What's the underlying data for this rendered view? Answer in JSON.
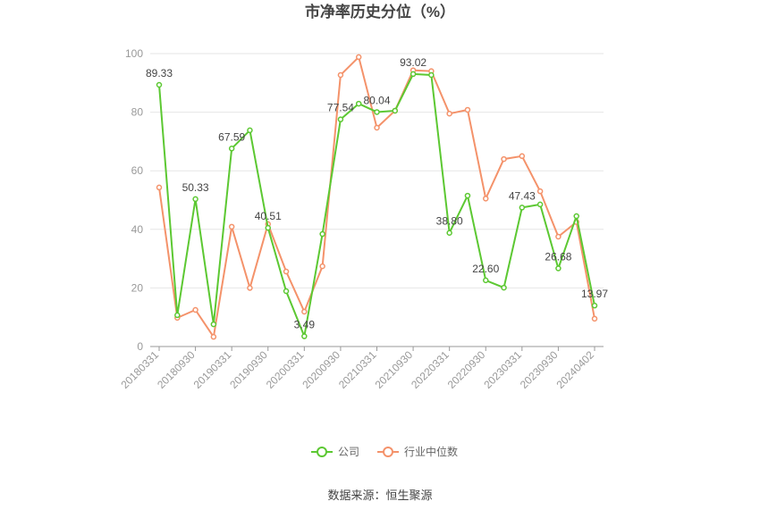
{
  "chart_data": {
    "type": "line",
    "title": "市净率历史分位（%）",
    "source": "数据来源：恒生聚源",
    "categories": [
      "20180331",
      null,
      "20180930",
      null,
      "20190331",
      null,
      "20190930",
      null,
      "20200331",
      null,
      "20200930",
      null,
      "20210331",
      null,
      "20210930",
      null,
      "20220331",
      null,
      "20220930",
      null,
      "20230331",
      null,
      "20230930",
      null,
      "20240402"
    ],
    "series": [
      {
        "name": "公司",
        "color": "#5cc832",
        "values": [
          89.33,
          10.7,
          50.33,
          7.6,
          67.59,
          73.8,
          40.51,
          18.9,
          3.49,
          38.4,
          77.54,
          82.9,
          80.04,
          80.5,
          93.02,
          92.7,
          38.8,
          51.5,
          22.6,
          20.1,
          47.43,
          48.5,
          26.68,
          44.5,
          13.97
        ],
        "value_labels": [
          "89.33",
          null,
          "50.33",
          null,
          "67.59",
          null,
          "40.51",
          null,
          "3.49",
          null,
          "77.54",
          null,
          "80.04",
          null,
          "93.02",
          null,
          "38.80",
          null,
          "22.60",
          null,
          "47.43",
          null,
          "26.68",
          null,
          "13.97"
        ]
      },
      {
        "name": "行业中位数",
        "color": "#f4926a",
        "values": [
          54.3,
          9.8,
          12.5,
          3.3,
          40.9,
          20,
          41.8,
          25.6,
          11.9,
          27.4,
          92.7,
          98.8,
          74.7,
          80.5,
          94.3,
          94,
          79.5,
          80.8,
          50.5,
          64,
          65,
          53,
          37.5,
          42.5,
          9.5
        ]
      }
    ],
    "ylim": [
      0,
      100
    ],
    "yticks": [
      0,
      20,
      40,
      60,
      80,
      100
    ],
    "grid": true,
    "legend": "bottom"
  }
}
